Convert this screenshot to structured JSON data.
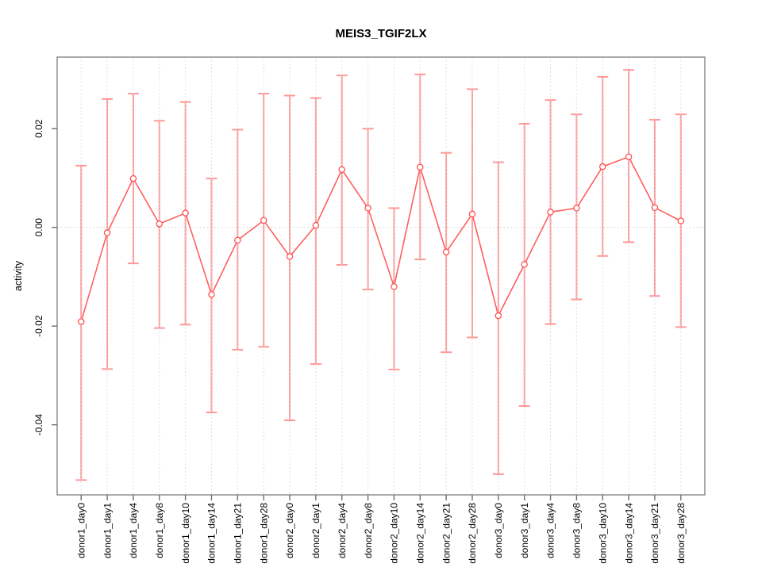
{
  "window": {
    "title": "MEIS3_TGIF2LX"
  },
  "chart_data": {
    "type": "line",
    "title": "MEIS3_TGIF2LX",
    "xlabel": "",
    "ylabel": "activity",
    "categories": [
      "donor1_day0",
      "donor1_day1",
      "donor1_day4",
      "donor1_day8",
      "donor1_day10",
      "donor1_day14",
      "donor1_day21",
      "donor1_day28",
      "donor2_day0",
      "donor2_day1",
      "donor2_day4",
      "donor2_day8",
      "donor2_day10",
      "donor2_day14",
      "donor2_day21",
      "donor2_day28",
      "donor3_day0",
      "donor3_day1",
      "donor3_day4",
      "donor3_day8",
      "donor3_day10",
      "donor3_day14",
      "donor3_day21",
      "donor3_day28"
    ],
    "series": [
      {
        "name": "activity",
        "values": [
          -0.0191,
          -0.0011,
          0.0099,
          0.0007,
          0.0029,
          -0.0136,
          -0.0026,
          0.0014,
          -0.0059,
          0.0004,
          0.0117,
          0.0039,
          -0.012,
          0.0122,
          -0.005,
          0.0027,
          -0.0179,
          -0.0075,
          0.0031,
          0.0039,
          0.0123,
          0.0143,
          0.004,
          0.0013
        ],
        "error_upper": [
          0.0125,
          0.026,
          0.0271,
          0.0216,
          0.0254,
          0.0099,
          0.0198,
          0.0271,
          0.0267,
          0.0262,
          0.0308,
          0.02,
          0.0039,
          0.031,
          0.0151,
          0.028,
          0.0132,
          0.021,
          0.0258,
          0.0229,
          0.0305,
          0.0319,
          0.0218,
          0.0229
        ],
        "error_lower": [
          -0.0512,
          -0.0287,
          -0.0073,
          -0.0204,
          -0.0197,
          -0.0375,
          -0.0248,
          -0.0242,
          -0.0391,
          -0.0277,
          -0.0076,
          -0.0126,
          -0.0288,
          -0.0065,
          -0.0253,
          -0.0223,
          -0.05,
          -0.0362,
          -0.0196,
          -0.0146,
          -0.0058,
          -0.003,
          -0.0139,
          -0.0202
        ]
      }
    ],
    "y_axis": {
      "ticks": [
        0.02,
        0.0,
        -0.02,
        -0.04
      ],
      "tick_labels": [
        "0.02",
        "0.00",
        "-0.02",
        "-0.04"
      ],
      "range": [
        -0.0542,
        0.0345
      ]
    },
    "x_axis": {
      "tick_label_rotation": -90
    },
    "grid": {
      "vertical_dotted_per_category": true,
      "horizontal_zero_dotted": true
    },
    "legend": {
      "visible": false
    },
    "point_style": "open-circle",
    "colors": {
      "error_bar": "#ff9898",
      "line": "#ff5f5f",
      "point": "#ff5252",
      "grid": "#d7d7d7",
      "zero_line": "#cfcfcf",
      "box": "#878787",
      "tick": "#6e6e6e",
      "text": "#000000"
    }
  }
}
